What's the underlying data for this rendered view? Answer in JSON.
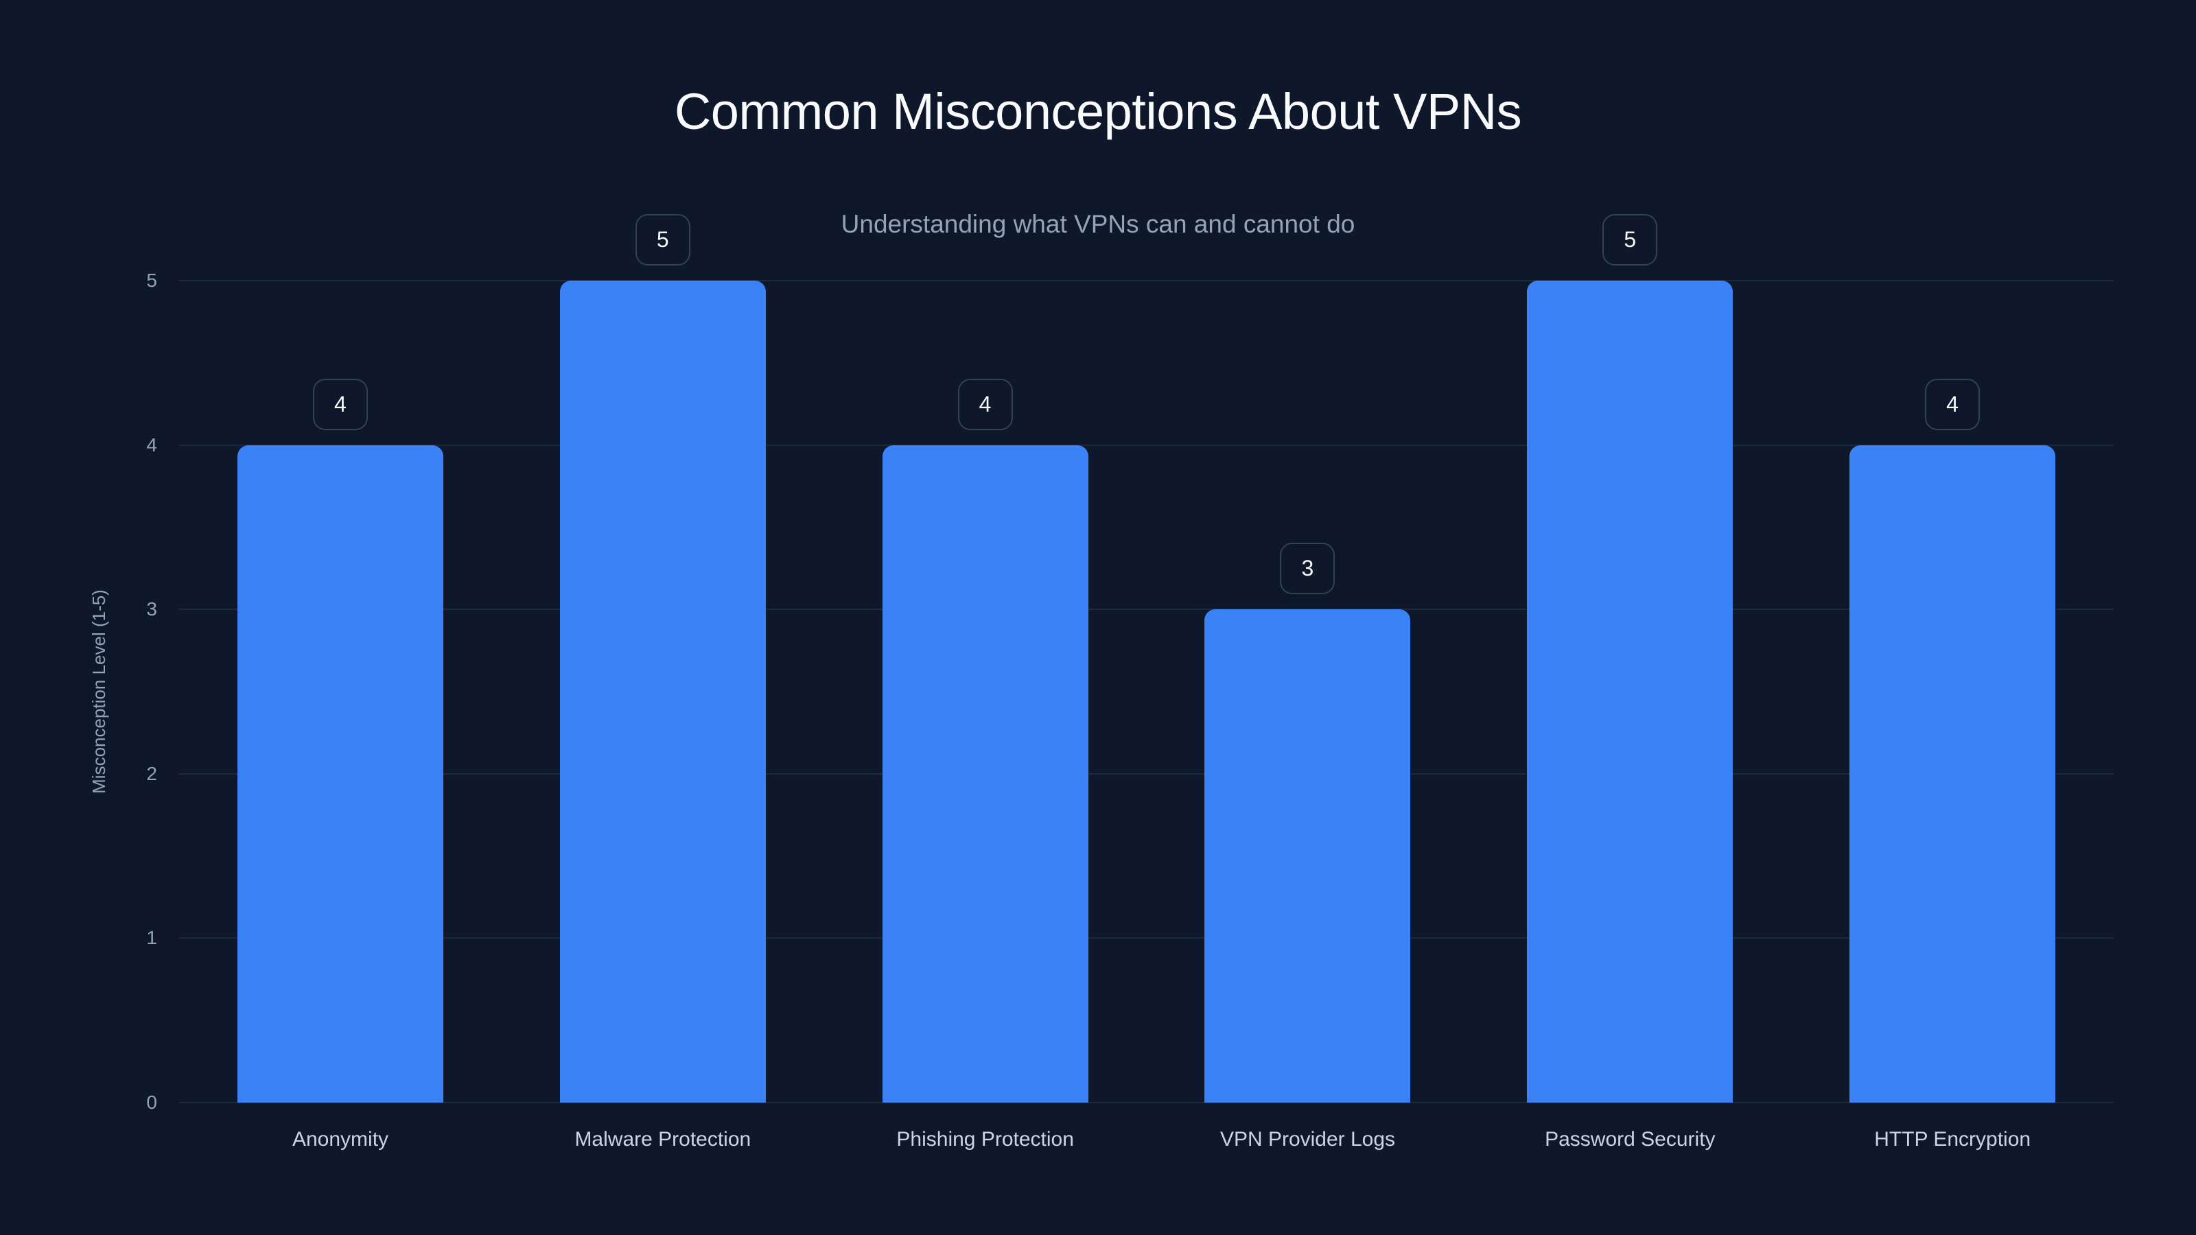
{
  "chart_data": {
    "type": "bar",
    "title": "Common Misconceptions About VPNs",
    "subtitle": "Understanding what VPNs can and cannot do",
    "xlabel": "",
    "ylabel": "Misconception Level (1-5)",
    "categories": [
      "Anonymity",
      "Malware Protection",
      "Phishing Protection",
      "VPN Provider Logs",
      "Password Security",
      "HTTP Encryption"
    ],
    "values": [
      4,
      5,
      4,
      3,
      5,
      4
    ],
    "ylim": [
      0,
      5
    ],
    "yticks": [
      0,
      1,
      2,
      3,
      4,
      5
    ],
    "grid": true,
    "data_labels": true,
    "legend": null
  },
  "colors": {
    "background": "#0f172a",
    "bar": "#3b82f6",
    "gridline": "#1e293b",
    "badge_border": "#334155",
    "title": "#f8fafc",
    "subtitle": "#94a3b8",
    "tick_label": "#94a3b8",
    "category_label": "#cbd5e1"
  }
}
